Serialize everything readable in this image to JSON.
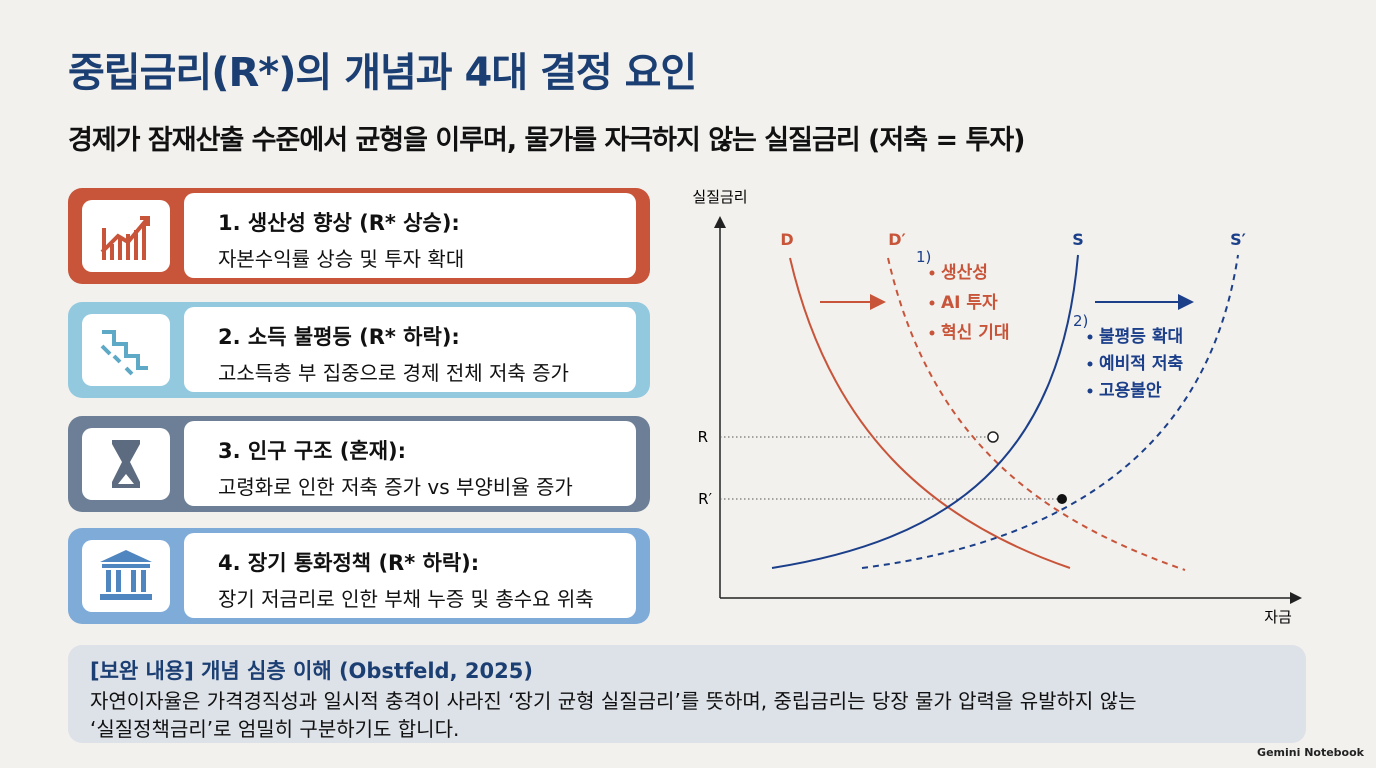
{
  "header": {
    "title": "중립금리(R*)의 개념과 4대 결정 요인",
    "subtitle": "경제가 잠재산출 수준에서 균형을 이루며, 물가를 자극하지 않는 실질금리 (저축 = 투자)"
  },
  "cards": [
    {
      "title": "1. 생산성 향상 (R* 상승):",
      "desc": "자본수익률 상승 및 투자 확대"
    },
    {
      "title": "2. 소득 불평등 (R* 하락):",
      "desc": "고소득층 부 집중으로 경제 전체 저축 증가"
    },
    {
      "title": "3. 인구 구조 (혼재):",
      "desc": "고령화로 인한 저축 증가 vs 부양비율 증가"
    },
    {
      "title": "4. 장기 통화정책 (R* 하락):",
      "desc": "장기 저금리로 인한 부채 누증 및 총수요 위축"
    }
  ],
  "diagram": {
    "y_label": "실질금리",
    "x_label": "자금",
    "curves": {
      "d": "D",
      "d_prime": "D′",
      "s": "S",
      "s_prime": "S′"
    },
    "rates": {
      "r": "R",
      "r_prime": "R′"
    },
    "shift1": {
      "label": "1)",
      "items": [
        "생산성",
        "AI 투자",
        "혁신 기대"
      ]
    },
    "shift2": {
      "label": "2)",
      "items": [
        "불평등 확대",
        "예비적 저축",
        "고용불안"
      ]
    }
  },
  "note": {
    "title": "[보완 내용] 개념 심층 이해 (Obstfeld, 2025)",
    "lines": [
      "자연이자율은 가격경직성과 일시적 충격이 사라진 ‘장기 균형 실질금리’를 뜻하며, 중립금리는 당장 물가 압력을 유발하지 않는",
      "‘실질정책금리’로 엄밀히 구분하기도 합니다."
    ]
  },
  "footer": {
    "brand": "Gemini Notebook"
  }
}
